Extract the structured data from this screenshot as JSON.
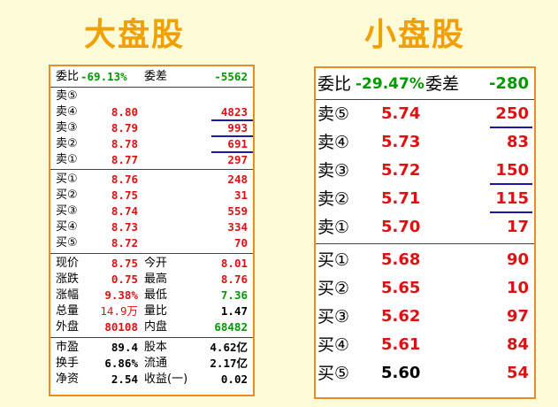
{
  "titles": {
    "left": "大盘股",
    "right": "小盘股"
  },
  "left": {
    "header": {
      "label1": "委比",
      "value1": "-69.13%",
      "label2": "委差",
      "value2": "-5562"
    },
    "sell": [
      {
        "label": "卖⑤",
        "price": "",
        "volume": ""
      },
      {
        "label": "卖④",
        "price": "8.80",
        "volume": "4823"
      },
      {
        "label": "卖③",
        "price": "8.79",
        "volume": "993"
      },
      {
        "label": "卖②",
        "price": "8.78",
        "volume": "691"
      },
      {
        "label": "卖①",
        "price": "8.77",
        "volume": "297"
      }
    ],
    "buy": [
      {
        "label": "买①",
        "price": "8.76",
        "volume": "248"
      },
      {
        "label": "买②",
        "price": "8.75",
        "volume": "31"
      },
      {
        "label": "买③",
        "price": "8.74",
        "volume": "559"
      },
      {
        "label": "买④",
        "price": "8.73",
        "volume": "334"
      },
      {
        "label": "买⑤",
        "price": "8.72",
        "volume": "70"
      }
    ],
    "stats": [
      {
        "l1": "现价",
        "v1": "8.75",
        "l2": "今开",
        "v2": "8.01"
      },
      {
        "l1": "涨跌",
        "v1": "0.75",
        "l2": "最高",
        "v2": "8.76"
      },
      {
        "l1": "涨幅",
        "v1": "9.38%",
        "l2": "最低",
        "v2": "7.36"
      },
      {
        "l1": "总量",
        "v1": "14.9万",
        "l2": "量比",
        "v2": "1.47"
      },
      {
        "l1": "外盘",
        "v1": "80108",
        "l2": "内盘",
        "v2": "68482"
      }
    ],
    "fund": [
      {
        "l1": "市盈",
        "v1": "89.4",
        "l2": "股本",
        "v2": "4.62亿"
      },
      {
        "l1": "换手",
        "v1": "6.86%",
        "l2": "流通",
        "v2": "2.17亿"
      },
      {
        "l1": "净资",
        "v1": "2.54",
        "l2": "收益(一)",
        "v2": "0.02"
      }
    ]
  },
  "right": {
    "header": {
      "label1": "委比",
      "value1": "-29.47%",
      "label2": "委差",
      "value2": "-280"
    },
    "sell": [
      {
        "label": "卖⑤",
        "price": "5.74",
        "volume": "250"
      },
      {
        "label": "卖④",
        "price": "5.73",
        "volume": "83"
      },
      {
        "label": "卖③",
        "price": "5.72",
        "volume": "150"
      },
      {
        "label": "卖②",
        "price": "5.71",
        "volume": "115"
      },
      {
        "label": "卖①",
        "price": "5.70",
        "volume": "17"
      }
    ],
    "buy": [
      {
        "label": "买①",
        "price": "5.68",
        "volume": "90"
      },
      {
        "label": "买②",
        "price": "5.65",
        "volume": "10"
      },
      {
        "label": "买③",
        "price": "5.62",
        "volume": "97"
      },
      {
        "label": "买④",
        "price": "5.61",
        "volume": "84"
      },
      {
        "label": "买⑤",
        "price": "5.60",
        "volume": "54"
      }
    ]
  },
  "colors": {
    "up": "#dd1111",
    "down": "#009900",
    "border": "#f08a20",
    "title": "#f0a000",
    "underline": "#1a1aa8"
  }
}
